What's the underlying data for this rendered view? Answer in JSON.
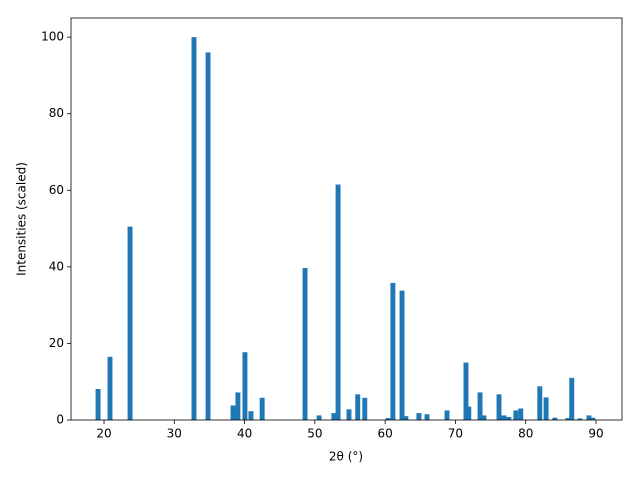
{
  "chart_data": {
    "type": "bar",
    "xlabel": "2θ (°)",
    "ylabel": "Intensities (scaled)",
    "color": "#1f77b4",
    "bar_width": 0.7,
    "x": [
      19.15,
      20.85,
      23.7,
      32.8,
      34.8,
      38.35,
      39.05,
      40.05,
      40.9,
      42.5,
      48.6,
      50.6,
      52.7,
      53.3,
      54.85,
      56.1,
      57.1,
      60.4,
      61.1,
      62.4,
      62.95,
      64.8,
      65.95,
      68.8,
      71.5,
      71.9,
      73.5,
      74.05,
      76.2,
      76.9,
      77.6,
      78.6,
      79.3,
      82.0,
      82.9,
      84.15,
      86.0,
      86.55,
      87.7,
      89.0,
      89.55
    ],
    "values": [
      8.1,
      16.5,
      50.5,
      100,
      96,
      3.8,
      7.2,
      17.7,
      2.3,
      5.8,
      39.7,
      1.2,
      1.8,
      61.5,
      2.8,
      6.7,
      5.8,
      0.5,
      35.8,
      33.8,
      1.0,
      1.8,
      1.5,
      2.5,
      15.0,
      3.5,
      7.2,
      1.2,
      6.7,
      1.2,
      0.8,
      2.5,
      3.0,
      8.8,
      5.9,
      0.6,
      0.5,
      11.0,
      0.4,
      1.2,
      0.6
    ],
    "xlim": [
      15.3,
      93.7
    ],
    "ylim": [
      0,
      105
    ],
    "xticks": [
      20,
      30,
      40,
      50,
      60,
      70,
      80,
      90
    ],
    "yticks": [
      0,
      20,
      40,
      60,
      80,
      100
    ]
  }
}
